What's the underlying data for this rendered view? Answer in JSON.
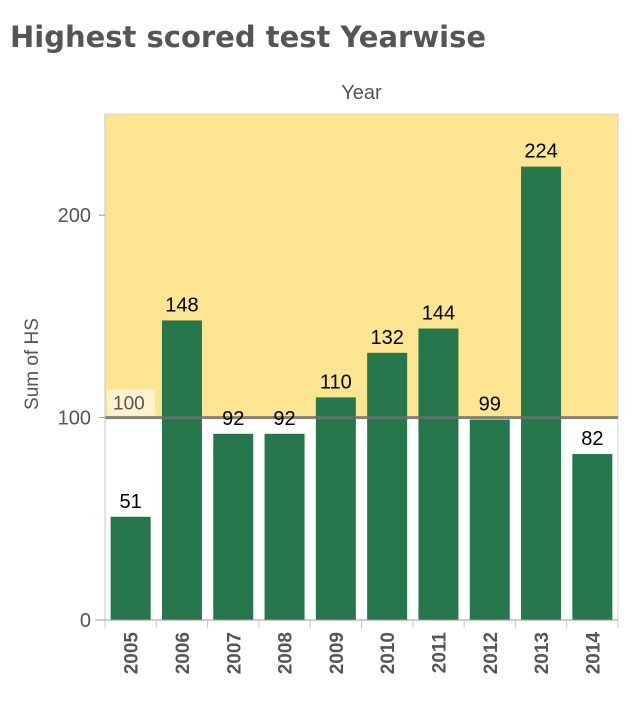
{
  "chart_data": {
    "type": "bar",
    "title": "Highest scored test Yearwise",
    "column_header": "Year",
    "ylabel": "Sum of HS",
    "categories": [
      "2005",
      "2006",
      "2007",
      "2008",
      "2009",
      "2010",
      "2011",
      "2012",
      "2013",
      "2014"
    ],
    "values": [
      51,
      148,
      92,
      92,
      110,
      132,
      144,
      99,
      224,
      82
    ],
    "ylim": [
      0,
      250
    ],
    "yticks": [
      0,
      100,
      200
    ],
    "reference_line": {
      "value": 100,
      "label": "100"
    },
    "colors": {
      "bar": "#26784c",
      "band": "#fde592",
      "reference": "#808080"
    },
    "grid": false
  }
}
